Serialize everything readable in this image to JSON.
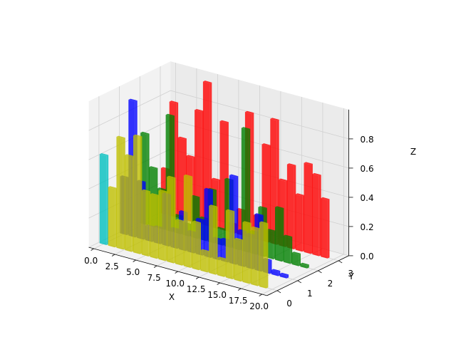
{
  "chart_data": {
    "type": "bar3d",
    "xlabel": "X",
    "ylabel": "Y",
    "zlabel": "Z",
    "xlim": [
      0,
      20
    ],
    "ylim": [
      0,
      3
    ],
    "zlim": [
      0,
      1
    ],
    "grid": true,
    "x_ticks": [
      "0.0",
      "2.5",
      "5.0",
      "7.5",
      "10.0",
      "12.5",
      "15.0",
      "17.5",
      "20.0"
    ],
    "y_ticks": [
      "0",
      "1",
      "2",
      "3"
    ],
    "z_ticks": [
      "0.0",
      "0.2",
      "0.4",
      "0.6",
      "0.8"
    ],
    "x": [
      0,
      1,
      2,
      3,
      4,
      5,
      6,
      7,
      8,
      9,
      10,
      11,
      12,
      13,
      14,
      15,
      16,
      17,
      18,
      19
    ],
    "series": [
      {
        "y": 3,
        "color": "#ff0000",
        "values": [
          0.31,
          0.78,
          0.55,
          0.44,
          0.77,
          0.98,
          0.33,
          0.74,
          0.06,
          0.17,
          0.85,
          0.16,
          0.66,
          0.85,
          0.45,
          0.57,
          0.38,
          0.61,
          0.55,
          0.4
        ]
      },
      {
        "y": 2,
        "color": "#008000",
        "values": [
          0.62,
          0.4,
          0.27,
          0.79,
          0.12,
          0.08,
          0.28,
          0.15,
          0.36,
          0.11,
          0.46,
          0.06,
          0.84,
          0.15,
          0.33,
          0.19,
          0.36,
          0.18,
          0.08,
          0.02
        ]
      },
      {
        "y": 1,
        "color": "#0000ff",
        "values": [
          0.39,
          0.93,
          0.39,
          0.1,
          0.11,
          0.35,
          0.13,
          0.26,
          0.14,
          0.24,
          0.46,
          0.14,
          0.15,
          0.6,
          0.24,
          0.23,
          0.38,
          0.09,
          0.03,
          0.02
        ]
      },
      {
        "y": 0,
        "color": "#bfbf00",
        "color_first": "#00bfbf",
        "values": [
          0.61,
          0.4,
          0.76,
          0.65,
          0.8,
          0.44,
          0.43,
          0.47,
          0.58,
          0.3,
          0.62,
          0.32,
          0.14,
          0.46,
          0.12,
          0.46,
          0.28,
          0.41,
          0.39,
          0.44
        ]
      }
    ]
  }
}
